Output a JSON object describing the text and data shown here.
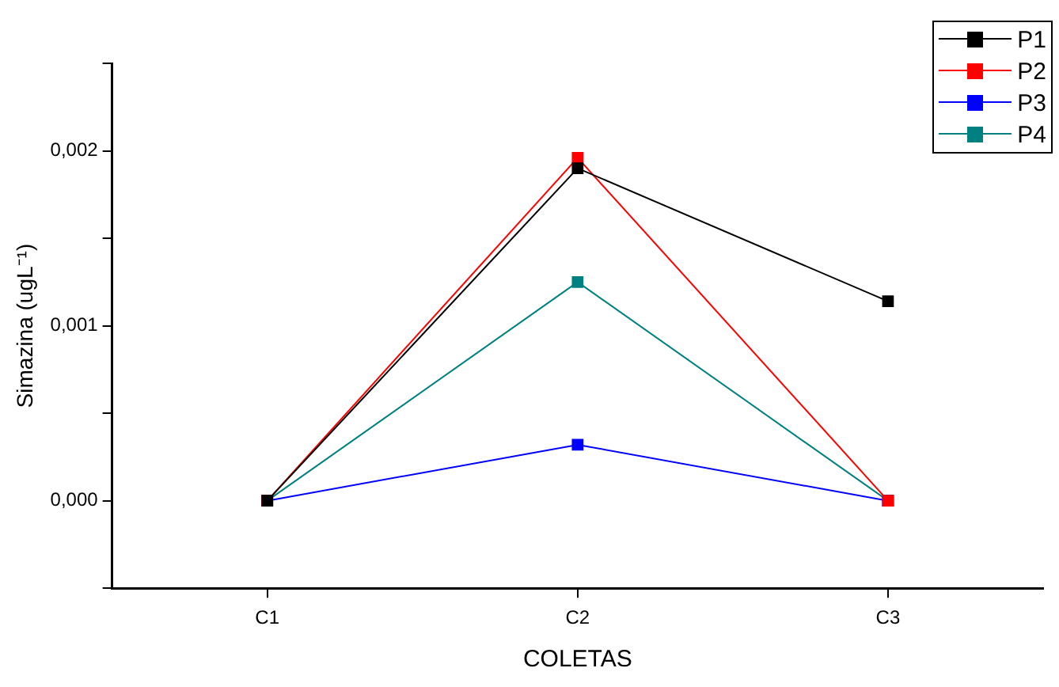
{
  "chart_data": {
    "type": "line",
    "xlabel": "COLETAS",
    "ylabel": "Simazina (ugL⁻¹)",
    "categories": [
      "C1",
      "C2",
      "C3"
    ],
    "series": [
      {
        "name": "P1",
        "color": "#000000",
        "values": [
          0,
          0.0019,
          0.00114
        ]
      },
      {
        "name": "P2",
        "color": "#ff0000",
        "values": [
          0,
          0.00196,
          0
        ]
      },
      {
        "name": "P3",
        "color": "#0000ff",
        "values": [
          0,
          0.00032,
          0
        ]
      },
      {
        "name": "P4",
        "color": "#008080",
        "values": [
          0,
          0.00125,
          0
        ]
      }
    ],
    "ylim": [
      -0.0005,
      0.0025
    ],
    "yticks": [
      {
        "value": -0.0005,
        "label": null
      },
      {
        "value": 0,
        "label": "0,000"
      },
      {
        "value": 0.0005,
        "label": null
      },
      {
        "value": 0.001,
        "label": "0,001"
      },
      {
        "value": 0.0015,
        "label": null
      },
      {
        "value": 0.002,
        "label": "0,002"
      },
      {
        "value": 0.0025,
        "label": null
      }
    ],
    "grid": false,
    "legend": "top right",
    "marker": "square",
    "line_style": "solid"
  }
}
